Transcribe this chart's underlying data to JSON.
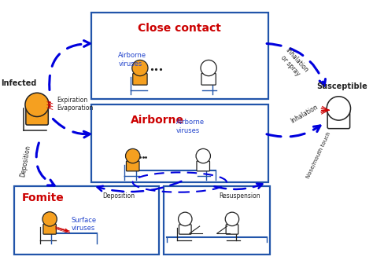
{
  "bg_color": "#ffffff",
  "box_color": "#2255aa",
  "arrow_color": "#0000dd",
  "red_color": "#cc0000",
  "blue_label_color": "#2244cc",
  "black_color": "#222222",
  "orange_fill": "#f5a020",
  "orange_outline": "#cc6600",
  "title_close": "Close contact",
  "title_airborne": "Airborne",
  "title_fomite": "Fomite",
  "label_infected": "Infected",
  "label_susceptible": "Susceptible",
  "label_airborne_viruses_cc": "Airborne\nviruses",
  "label_airborne_viruses_ab": "Airborne\nviruses",
  "label_surface_viruses": "Surface\nviruses",
  "label_expiration": "Expiration\nEvaporation",
  "label_deposition_left": "Deposition",
  "label_deposition_bottom": "Deposition",
  "label_resuspension": "Resuspension",
  "label_inhalation_spray": "Inhalation\nor spray",
  "label_inhalation": "Inhalation",
  "label_nose": "Nose/mouth touch",
  "xlim": [
    0,
    10
  ],
  "ylim": [
    0,
    7
  ],
  "figw": 4.74,
  "figh": 3.31,
  "dpi": 100
}
